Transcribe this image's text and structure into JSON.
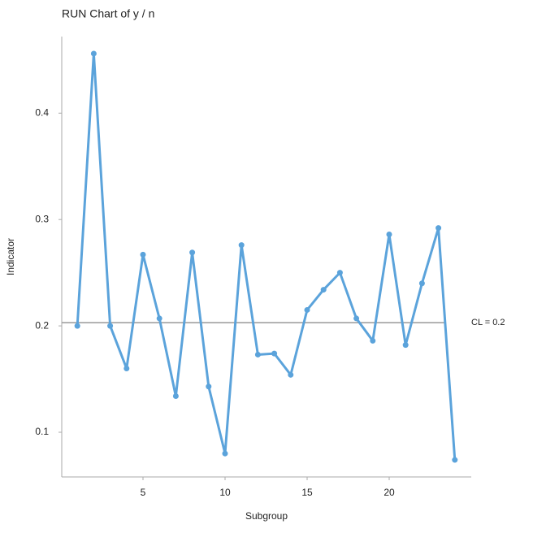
{
  "chart_data": {
    "type": "line",
    "title": "RUN Chart of y / n",
    "x_label": "Subgroup",
    "y_label": "Indicator",
    "x": [
      1,
      2,
      3,
      4,
      5,
      6,
      7,
      8,
      9,
      10,
      11,
      12,
      13,
      14,
      15,
      16,
      17,
      18,
      19,
      20,
      21,
      22,
      23,
      24
    ],
    "series": [
      {
        "name": "y / n",
        "color": "#5ba3db",
        "values": [
          0.2,
          0.456,
          0.2,
          0.16,
          0.267,
          0.207,
          0.134,
          0.269,
          0.143,
          0.08,
          0.276,
          0.173,
          0.174,
          0.154,
          0.215,
          0.234,
          0.25,
          0.207,
          0.186,
          0.286,
          0.182,
          0.24,
          0.292,
          0.074
        ]
      }
    ],
    "center_line": {
      "value": 0.203,
      "label": "CL = 0.2",
      "color": "#999999"
    },
    "xlim": [
      0.05,
      25
    ],
    "xticks": [
      5,
      10,
      15,
      20
    ],
    "ylim": [
      0.058,
      0.472
    ],
    "yticks": [
      0.1,
      0.2,
      0.3,
      0.4
    ]
  }
}
